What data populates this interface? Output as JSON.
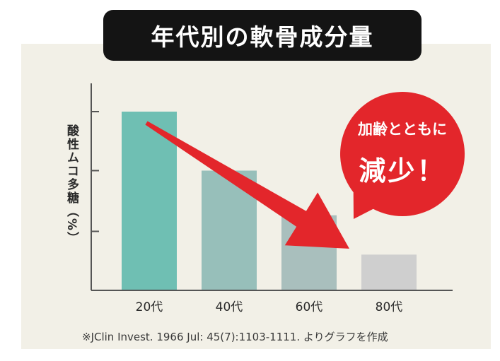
{
  "title": "年代別の軟骨成分量",
  "chart_data": {
    "type": "bar",
    "categories": [
      "20代",
      "40代",
      "60代",
      "80代"
    ],
    "values": [
      100,
      67,
      42,
      20
    ],
    "ylabel": "酸性ムコ多糖（%）",
    "ylim": [
      0,
      100
    ],
    "yticks": [
      33,
      67,
      100
    ],
    "tick_labels_shown": false,
    "grid": false,
    "colors": [
      "#6fbfb3",
      "#97bfba",
      "#a9bfbd",
      "#cfcfcf"
    ],
    "annotation_arrow": {
      "from_category": "20代",
      "to_category": "80代",
      "color": "#e3262b"
    }
  },
  "callout": {
    "line1": "加齢とともに",
    "line2": "減少！",
    "color": "#e3262b"
  },
  "source": "※JClin Invest. 1966 Jul: 45(7):1103-1111. よりグラフを作成"
}
